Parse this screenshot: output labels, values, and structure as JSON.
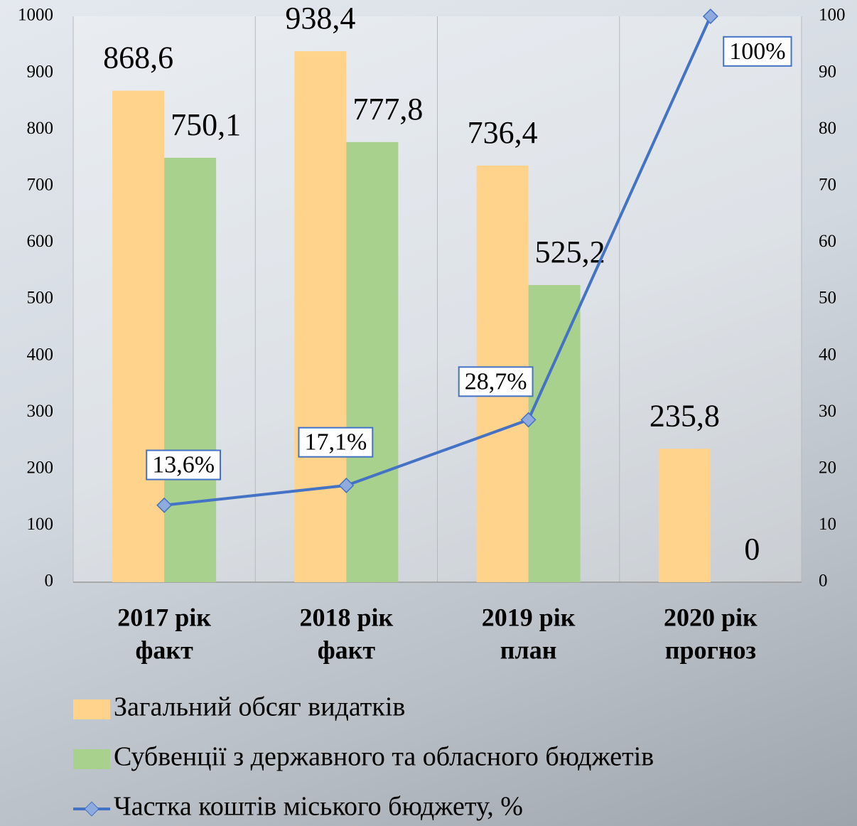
{
  "chart_data": {
    "type": "bar-line",
    "categories": [
      [
        "2017 рік",
        "факт"
      ],
      [
        "2018 рік",
        "факт"
      ],
      [
        "2019 рік",
        "план"
      ],
      [
        "2020 рік",
        "прогноз"
      ]
    ],
    "series": [
      {
        "name": "Загальний обсяг видатків",
        "type": "bar",
        "color": "#ffd38c",
        "values": [
          868.6,
          938.4,
          736.4,
          235.8
        ],
        "value_labels": [
          "868,6",
          "938,4",
          "736,4",
          "235,8"
        ]
      },
      {
        "name": "Субвенції з державного та обласного бюджетів",
        "type": "bar",
        "color": "#a9d18e",
        "values": [
          750.1,
          777.8,
          525.2,
          0
        ],
        "value_labels": [
          "750,1",
          "777,8",
          "525,2",
          "0"
        ]
      },
      {
        "name": "Частка коштів міського бюджету, %",
        "type": "line",
        "axis": "y2",
        "color": "#4472c4",
        "values": [
          13.6,
          17.1,
          28.7,
          100
        ],
        "value_labels": [
          "13,6%",
          "17,1%",
          "28,7%",
          "100%"
        ]
      }
    ],
    "ylim": [
      0,
      1000
    ],
    "yticks": [
      0,
      100,
      200,
      300,
      400,
      500,
      600,
      700,
      800,
      900,
      1000
    ],
    "y2lim": [
      0,
      100
    ],
    "y2ticks": [
      0,
      10,
      20,
      30,
      40,
      50,
      60,
      70,
      80,
      90,
      100
    ],
    "legend": "bottom"
  }
}
